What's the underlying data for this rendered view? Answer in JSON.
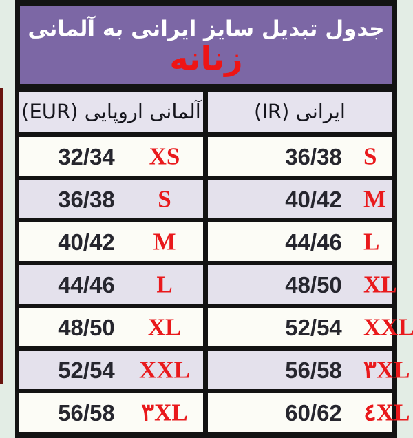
{
  "header": {
    "title": "جدول تبدیل سایز ایرانی به آلمانی",
    "subtitle": "زنانه"
  },
  "table": {
    "columns": [
      {
        "key": "eur",
        "label": "آلمانی اروپایی (EUR)"
      },
      {
        "key": "ir",
        "label": "ایرانی (IR)"
      }
    ],
    "rows": [
      {
        "eur_size": "32/34",
        "eur_label": "XS",
        "ir_size": "36/38",
        "ir_label": "S"
      },
      {
        "eur_size": "36/38",
        "eur_label": "S",
        "ir_size": "40/42",
        "ir_label": "M"
      },
      {
        "eur_size": "40/42",
        "eur_label": "M",
        "ir_size": "44/46",
        "ir_label": "L"
      },
      {
        "eur_size": "44/46",
        "eur_label": "L",
        "ir_size": "48/50",
        "ir_label": "XL"
      },
      {
        "eur_size": "48/50",
        "eur_label": "XL",
        "ir_size": "52/54",
        "ir_label": "XXL"
      },
      {
        "eur_size": "52/54",
        "eur_label": "XXL",
        "ir_size": "56/58",
        "ir_label": "۳XL"
      },
      {
        "eur_size": "56/58",
        "eur_label": "۳XL",
        "ir_size": "60/62",
        "ir_label": "٤XL"
      }
    ]
  },
  "colors": {
    "banner_background": "#7c67a5",
    "accent_red": "#ee1515",
    "row_alt_lavender": "#e4e1ec",
    "row_white": "#fcfcf6",
    "border_black": "#131313",
    "page_background": "#e3ede5"
  }
}
